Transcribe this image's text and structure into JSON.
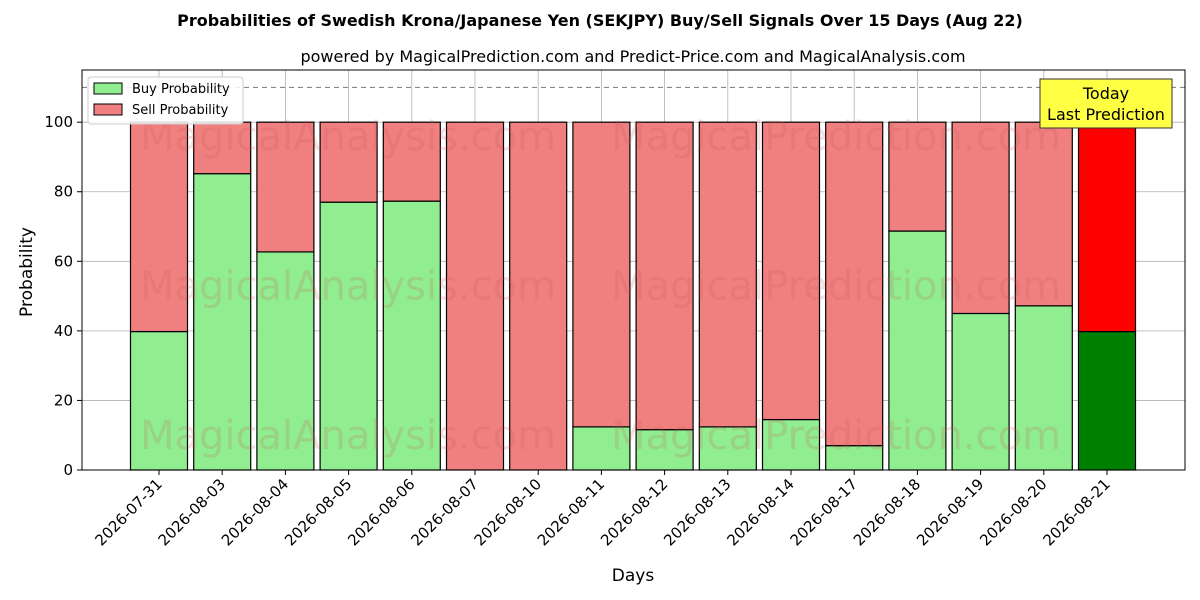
{
  "chart_data": {
    "type": "bar",
    "stacked": true,
    "title": "Probabilities of Swedish Krona/Japanese Yen (SEKJPY) Buy/Sell Signals Over 15 Days (Aug 22)",
    "subtitle": "powered by MagicalPrediction.com and Predict-Price.com and MagicalAnalysis.com",
    "xlabel": "Days",
    "ylabel": "Probability",
    "ylim": [
      0,
      115
    ],
    "yticks": [
      0,
      20,
      40,
      60,
      80,
      100
    ],
    "reference_line": 110,
    "grid": true,
    "legend_placement": "top-left",
    "categories": [
      "2026-07-31",
      "2026-08-03",
      "2026-08-04",
      "2026-08-05",
      "2026-08-06",
      "2026-08-07",
      "2026-08-10",
      "2026-08-11",
      "2026-08-12",
      "2026-08-13",
      "2026-08-14",
      "2026-08-17",
      "2026-08-18",
      "2026-08-19",
      "2026-08-20",
      "2026-08-21"
    ],
    "series": [
      {
        "name": "Buy Probability",
        "color": "#90ee90",
        "last_color": "#008000",
        "values": [
          39.8,
          85.2,
          62.7,
          77.0,
          77.3,
          0,
          0,
          12.4,
          11.6,
          12.4,
          14.5,
          7.0,
          68.7,
          45.0,
          47.2,
          39.8
        ]
      },
      {
        "name": "Sell Probability",
        "color": "#f08080",
        "last_color": "#ff0000",
        "values": [
          60.2,
          14.8,
          37.3,
          23.0,
          22.7,
          100,
          100,
          87.6,
          88.4,
          87.6,
          85.5,
          93.0,
          31.3,
          55.0,
          52.8,
          60.2
        ]
      }
    ],
    "annotation": {
      "lines": [
        "Today",
        "Last Prediction"
      ],
      "color": "#ffff44"
    },
    "watermarks": [
      "MagicalAnalysis.com",
      "MagicalPrediction.com"
    ]
  }
}
